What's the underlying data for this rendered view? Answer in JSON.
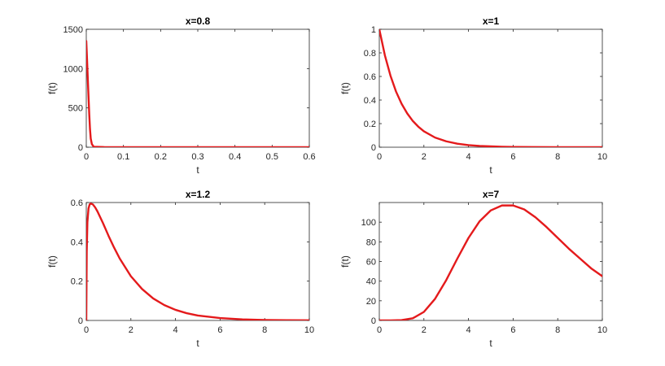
{
  "chart_data": [
    {
      "type": "line",
      "title": "x=0.8",
      "xlabel": "t",
      "ylabel": "f(t)",
      "xlim": [
        0,
        0.6
      ],
      "ylim": [
        0,
        1500
      ],
      "xticks": [
        0,
        0.1,
        0.2,
        0.3,
        0.4,
        0.5,
        0.6
      ],
      "xtick_labels": [
        "0",
        "0.1",
        "0.2",
        "0.3",
        "0.4",
        "0.5",
        "0.6"
      ],
      "yticks": [
        0,
        500,
        1000,
        1500
      ],
      "ytick_labels": [
        "0",
        "500",
        "1000",
        "1500"
      ],
      "grid": false,
      "line_color": "#e41a1c",
      "series": [
        {
          "x": [
            0,
            0.002,
            0.005,
            0.008,
            0.01,
            0.012,
            0.015,
            0.02,
            0.05,
            0.1,
            0.2,
            0.3,
            0.4,
            0.5,
            0.6
          ],
          "y": [
            1350,
            1120,
            760,
            420,
            230,
            110,
            40,
            6,
            1,
            0.5,
            0.2,
            0.1,
            0.05,
            0.02,
            0
          ]
        }
      ]
    },
    {
      "type": "line",
      "title": "x=1",
      "xlabel": "t",
      "ylabel": "f(t)",
      "xlim": [
        0,
        10
      ],
      "ylim": [
        0,
        1
      ],
      "xticks": [
        0,
        2,
        4,
        6,
        8,
        10
      ],
      "xtick_labels": [
        "0",
        "2",
        "4",
        "6",
        "8",
        "10"
      ],
      "yticks": [
        0,
        0.2,
        0.4,
        0.6,
        0.8,
        1
      ],
      "ytick_labels": [
        "0",
        "0.2",
        "0.4",
        "0.6",
        "0.8",
        "1"
      ],
      "grid": false,
      "line_color": "#e41a1c",
      "series": [
        {
          "x": [
            0,
            0.25,
            0.5,
            0.75,
            1,
            1.25,
            1.5,
            1.75,
            2,
            2.5,
            3,
            3.5,
            4,
            4.5,
            5,
            5.5,
            6,
            7,
            8,
            9,
            10
          ],
          "y": [
            1,
            0.779,
            0.607,
            0.472,
            0.368,
            0.287,
            0.223,
            0.174,
            0.135,
            0.082,
            0.05,
            0.03,
            0.018,
            0.011,
            0.007,
            0.004,
            0.0025,
            0.0009,
            0.0003,
            0.0001,
            0
          ]
        }
      ]
    },
    {
      "type": "line",
      "title": "x=1.2",
      "xlabel": "t",
      "ylabel": "f(t)",
      "xlim": [
        0,
        10
      ],
      "ylim": [
        0,
        0.6
      ],
      "xticks": [
        0,
        2,
        4,
        6,
        8,
        10
      ],
      "xtick_labels": [
        "0",
        "2",
        "4",
        "6",
        "8",
        "10"
      ],
      "yticks": [
        0,
        0.2,
        0.4,
        0.6
      ],
      "ytick_labels": [
        "0",
        "0.2",
        "0.4",
        "0.6"
      ],
      "grid": false,
      "line_color": "#e41a1c",
      "series": [
        {
          "x": [
            0,
            0.02,
            0.05,
            0.1,
            0.15,
            0.2,
            0.3,
            0.4,
            0.5,
            0.75,
            1,
            1.25,
            1.5,
            2,
            2.5,
            3,
            3.5,
            4,
            4.5,
            5,
            6,
            7,
            8,
            9,
            10
          ],
          "y": [
            0,
            0.35,
            0.5,
            0.57,
            0.59,
            0.595,
            0.59,
            0.575,
            0.555,
            0.495,
            0.43,
            0.37,
            0.315,
            0.225,
            0.16,
            0.112,
            0.078,
            0.054,
            0.037,
            0.025,
            0.012,
            0.0055,
            0.0025,
            0.0011,
            0.0005
          ]
        }
      ]
    },
    {
      "type": "line",
      "title": "x=7",
      "xlabel": "t",
      "ylabel": "f(t)",
      "xlim": [
        0,
        10
      ],
      "ylim": [
        0,
        120
      ],
      "xticks": [
        0,
        2,
        4,
        6,
        8,
        10
      ],
      "xtick_labels": [
        "0",
        "2",
        "4",
        "6",
        "8",
        "10"
      ],
      "yticks": [
        0,
        20,
        40,
        60,
        80,
        100
      ],
      "ytick_labels": [
        "0",
        "20",
        "40",
        "60",
        "80",
        "100"
      ],
      "grid": false,
      "line_color": "#e41a1c",
      "series": [
        {
          "x": [
            0,
            0.5,
            1,
            1.5,
            2,
            2.5,
            3,
            3.5,
            4,
            4.5,
            5,
            5.5,
            6,
            6.5,
            7,
            7.5,
            8,
            8.5,
            9,
            9.5,
            10
          ],
          "y": [
            0,
            0.05,
            0.37,
            2.2,
            8.7,
            22,
            41,
            63,
            84,
            101,
            112,
            117,
            117,
            113,
            105,
            95,
            84,
            73,
            63,
            53,
            45
          ]
        }
      ]
    }
  ]
}
